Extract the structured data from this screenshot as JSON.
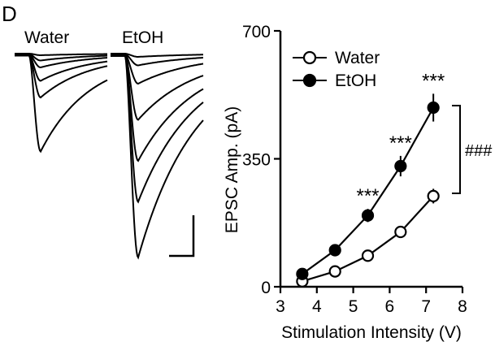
{
  "panel_letter": "D",
  "traces": {
    "water_label": "Water",
    "etoh_label": "EtOH"
  },
  "colors": {
    "line": "#000000",
    "filled_marker": "#000000",
    "open_marker_fill": "#ffffff"
  },
  "chart_data": {
    "type": "line",
    "xlabel": "Stimulation Intensity (V)",
    "ylabel": "EPSC Amp. (pA)",
    "xlim": [
      3,
      8
    ],
    "ylim": [
      0,
      700
    ],
    "xticks": [
      "3",
      "4",
      "5",
      "6",
      "7",
      "8"
    ],
    "yticks": [
      "0",
      "350",
      "700"
    ],
    "grid": false,
    "legend_position": "top-left",
    "series": [
      {
        "name": "Water",
        "marker": "open-circle",
        "x": [
          3.6,
          4.5,
          5.4,
          6.3,
          7.2
        ],
        "y": [
          15,
          42,
          85,
          150,
          248
        ],
        "err": [
          10,
          12,
          14,
          15,
          20
        ]
      },
      {
        "name": "EtOH",
        "marker": "filled-circle",
        "x": [
          3.6,
          4.5,
          5.4,
          6.3,
          7.2
        ],
        "y": [
          35,
          100,
          195,
          330,
          490
        ],
        "err": [
          10,
          14,
          18,
          28,
          38
        ]
      }
    ],
    "annotations": {
      "pointwise_significance": [
        {
          "x": 5.4,
          "label": "***"
        },
        {
          "x": 6.3,
          "label": "***"
        },
        {
          "x": 7.2,
          "label": "***"
        }
      ],
      "group_significance": "###"
    }
  }
}
